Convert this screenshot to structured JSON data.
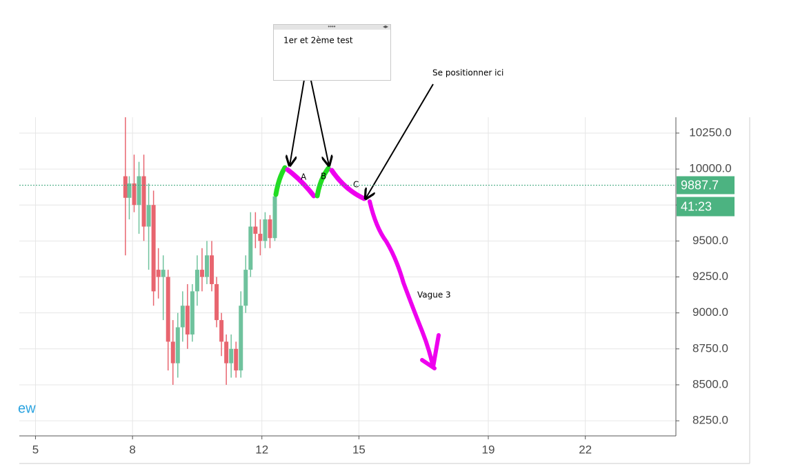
{
  "chart_data": {
    "type": "candlestick",
    "watermark": "ew",
    "x": [
      7.78,
      7.9,
      8.05,
      8.2,
      8.35,
      8.5,
      8.65,
      8.8,
      8.95,
      9.1,
      9.25,
      9.4,
      9.55,
      9.7,
      9.85,
      10.0,
      10.15,
      10.3,
      10.45,
      10.6,
      10.75,
      10.9,
      11.05,
      11.2,
      11.35,
      11.5,
      11.65,
      11.8,
      11.95,
      12.1,
      12.25,
      12.4
    ],
    "open": [
      9950,
      9800,
      9900,
      9750,
      9950,
      9600,
      9750,
      9300,
      9250,
      9250,
      8800,
      8650,
      8900,
      9050,
      8850,
      9150,
      9300,
      9250,
      9400,
      9200,
      8950,
      8800,
      8650,
      8750,
      8600,
      9050,
      9300,
      9600,
      9550,
      9500,
      9650,
      9520
    ],
    "high": [
      10360,
      9950,
      10100,
      10050,
      10100,
      9900,
      9850,
      9450,
      9400,
      9300,
      8950,
      9000,
      9150,
      9200,
      9200,
      9400,
      9450,
      9500,
      9500,
      9250,
      9000,
      8850,
      8850,
      8800,
      9150,
      9400,
      9700,
      9700,
      9650,
      9700,
      9680,
      9860
    ],
    "low": [
      9400,
      9650,
      9700,
      9550,
      9500,
      9300,
      9050,
      9100,
      8950,
      8600,
      8500,
      8550,
      8800,
      8750,
      8800,
      9050,
      9150,
      9200,
      9150,
      8900,
      8700,
      8500,
      8550,
      8550,
      8550,
      9000,
      9250,
      9450,
      9400,
      9450,
      9450,
      9500
    ],
    "close": [
      9800,
      9900,
      9750,
      9950,
      9600,
      9750,
      9150,
      9250,
      9300,
      8800,
      8650,
      8900,
      9050,
      8850,
      9150,
      9300,
      9250,
      9400,
      9200,
      8950,
      8800,
      8650,
      8750,
      8600,
      9050,
      9300,
      9600,
      9550,
      9500,
      9650,
      9520,
      9810
    ],
    "up_color": "#6fc29d",
    "down_color": "#e8656f",
    "xlim": [
      4.5,
      24.8
    ],
    "ylim": [
      8145,
      10360
    ],
    "xticks": [
      5,
      8,
      12,
      15,
      19,
      22
    ],
    "yticks": [
      {
        "value": 8250,
        "label": "8250.0"
      },
      {
        "value": 8500,
        "label": "8500.0"
      },
      {
        "value": 8750,
        "label": "8750.0"
      },
      {
        "value": 9000,
        "label": "9000.0"
      },
      {
        "value": 9250,
        "label": "9250.0"
      },
      {
        "value": 9500,
        "label": "9500.0"
      },
      {
        "value": 9750,
        "label": "9750.0"
      },
      {
        "value": 10000,
        "label": "10000.0"
      },
      {
        "value": 10250,
        "label": "10250.0"
      }
    ],
    "grid": true,
    "last_price": 9887.7,
    "countdown": "41:23",
    "annotations": {
      "note": "1er et 2ème test",
      "position": "Se positionner ici",
      "wave": "Vague 3",
      "points": [
        "A",
        "B",
        "C"
      ]
    }
  }
}
